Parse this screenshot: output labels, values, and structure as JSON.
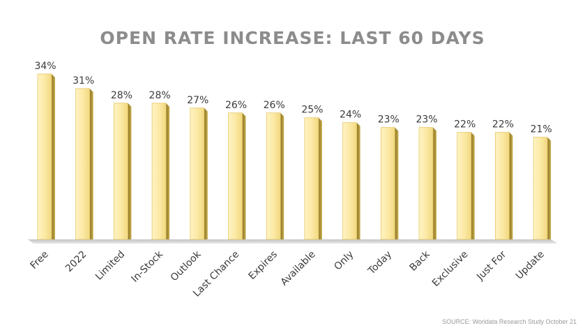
{
  "chart_data": {
    "type": "bar",
    "title": "OPEN RATE INCREASE:  LAST 60 DAYS",
    "categories": [
      "Free",
      "2022",
      "Limited",
      "In-Stock",
      "Outlook",
      "Last Chance",
      "Expires",
      "Available",
      "Only",
      "Today",
      "Back",
      "Exclusive",
      "Just For",
      "Update"
    ],
    "values": [
      34,
      31,
      28,
      28,
      27,
      26,
      26,
      25,
      24,
      23,
      23,
      22,
      22,
      21
    ],
    "value_labels": [
      "34%",
      "31%",
      "28%",
      "28%",
      "27%",
      "26%",
      "26%",
      "25%",
      "24%",
      "23%",
      "23%",
      "22%",
      "22%",
      "21%"
    ],
    "ylim": [
      0,
      34
    ],
    "grid": false,
    "bar_color": "#fbe79d",
    "bar_side_color": "#b39a3c",
    "label_color": "#3a3a3a"
  },
  "source": "SOURCE: Worldata Research Study October 21"
}
